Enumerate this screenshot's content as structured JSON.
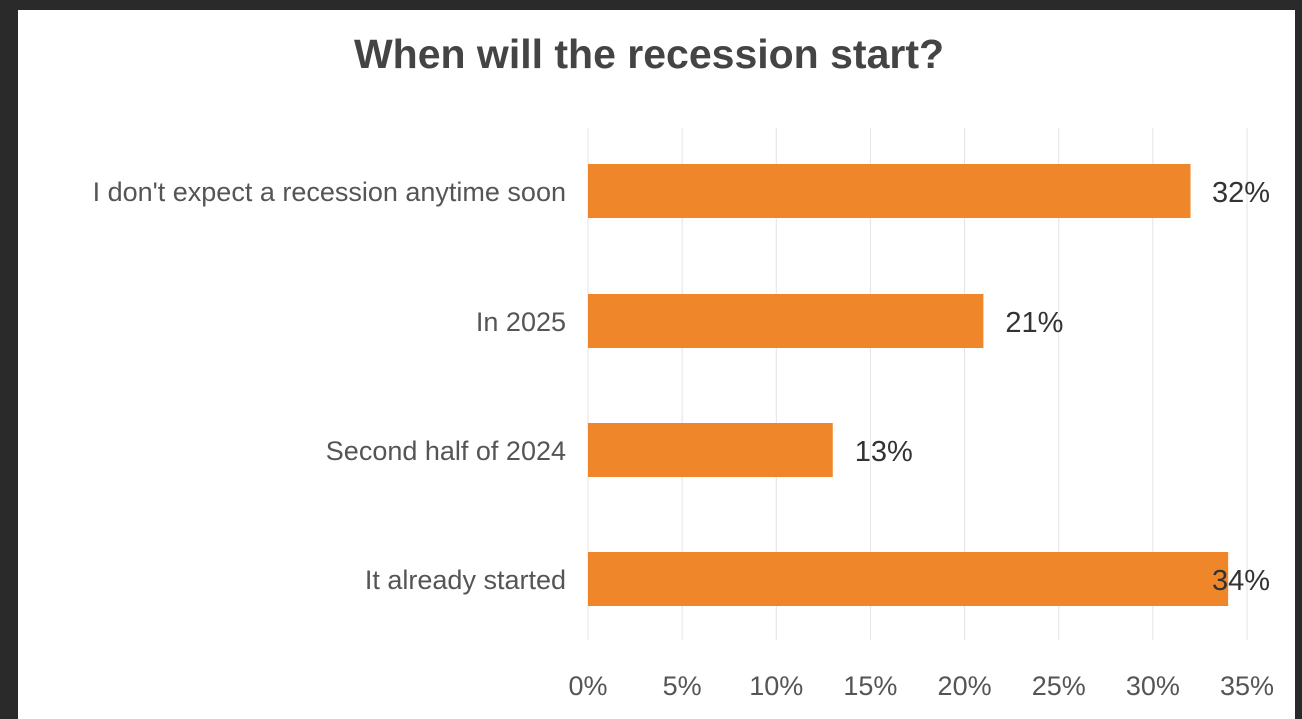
{
  "chart_data": {
    "type": "bar",
    "orientation": "horizontal",
    "title": "When will the recession start?",
    "categories": [
      "I don't expect a recession anytime soon",
      "In 2025",
      "Second half of 2024",
      "It already started"
    ],
    "values": [
      32,
      21,
      13,
      34
    ],
    "data_labels": [
      "32%",
      "21%",
      "13%",
      "34%"
    ],
    "x_ticks": [
      0,
      5,
      10,
      15,
      20,
      25,
      30,
      35
    ],
    "x_tick_labels": [
      "0%",
      "5%",
      "10%",
      "15%",
      "20%",
      "25%",
      "30%",
      "35%"
    ],
    "xlim": [
      0,
      35
    ],
    "xlabel": "",
    "ylabel": "",
    "grid": "vertical",
    "legend": "none",
    "bar_color": "#f0862a"
  }
}
